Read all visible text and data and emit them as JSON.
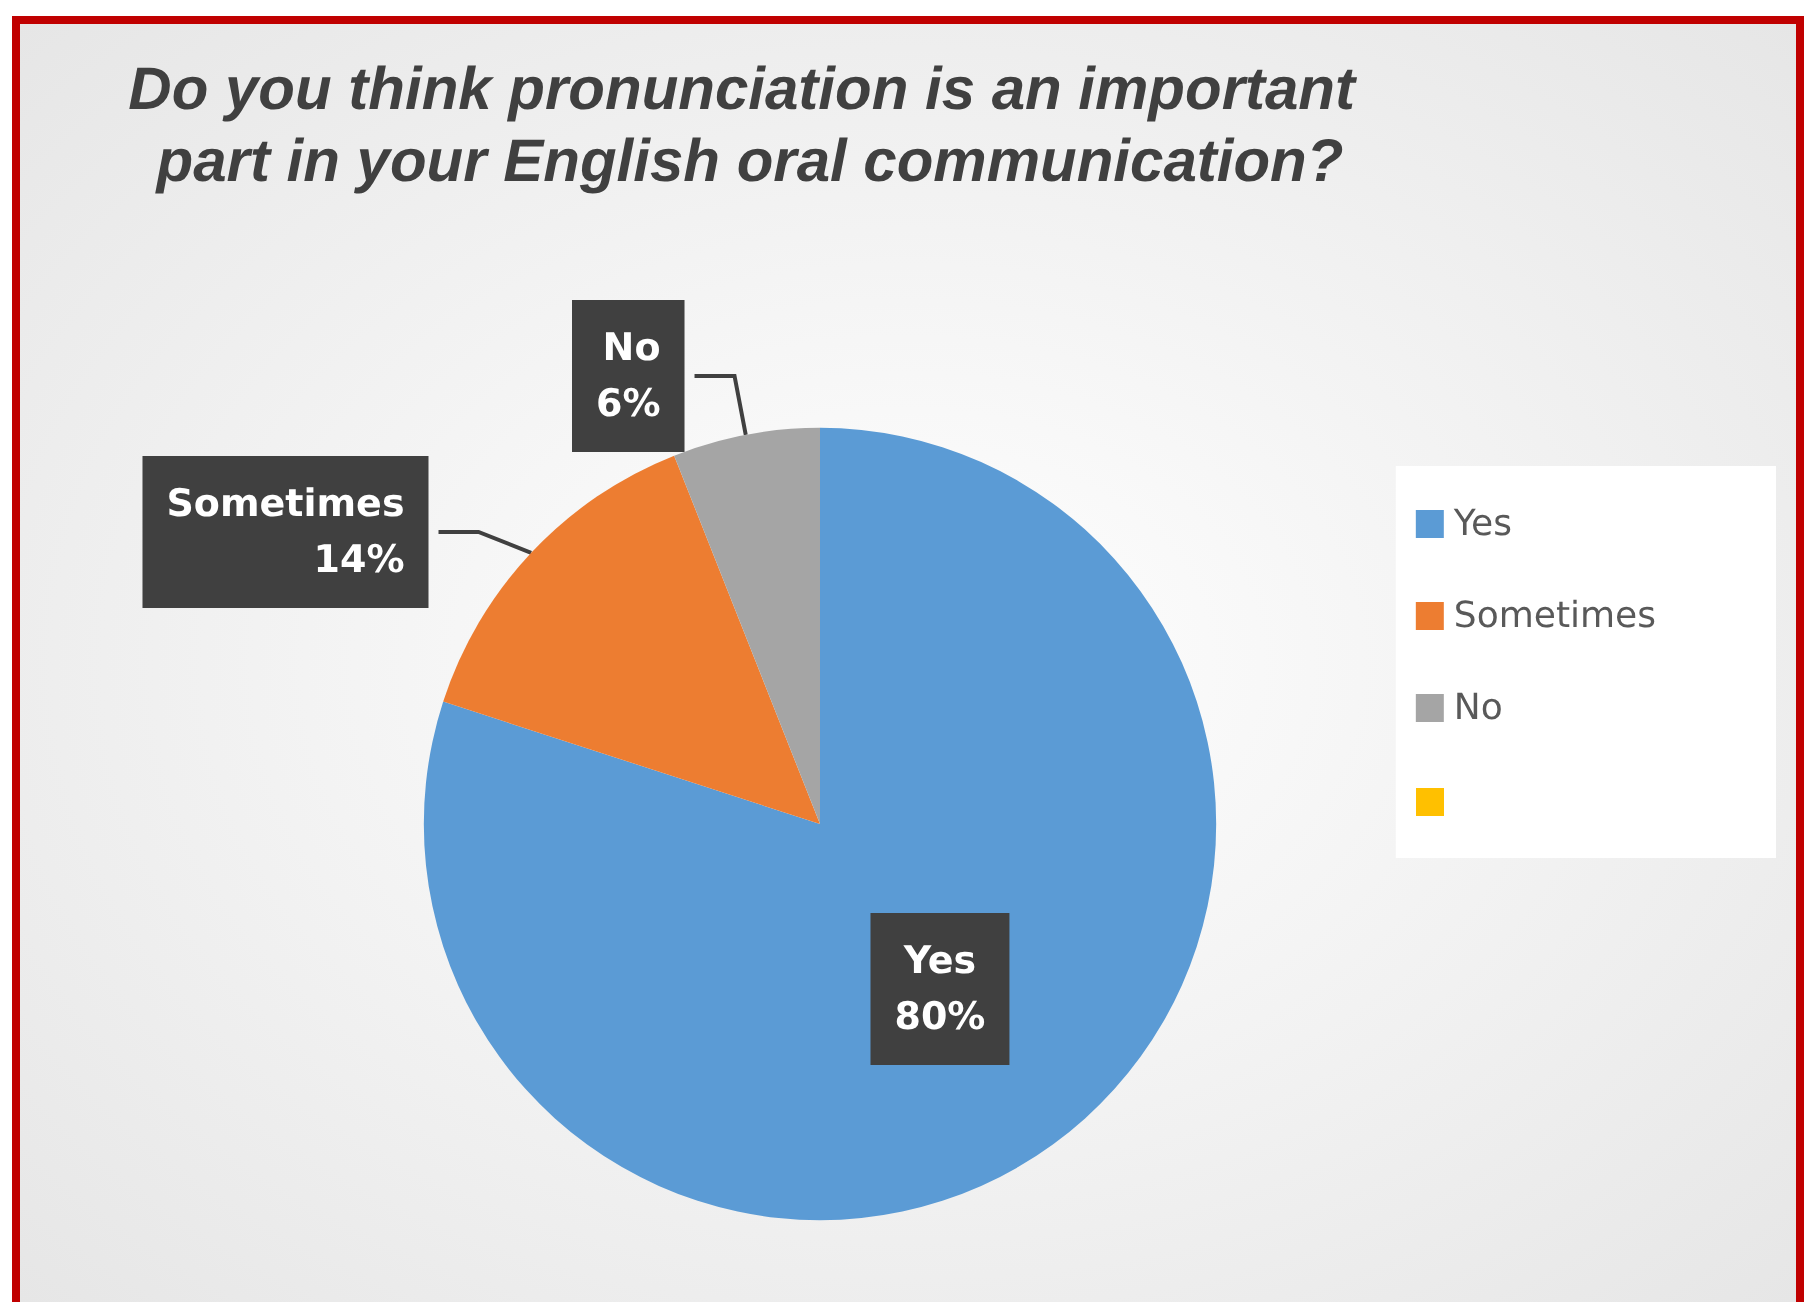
{
  "chart_data": {
    "type": "pie",
    "title": "Do you think pronunciation is an important part in your English oral communication?",
    "categories": [
      "Yes",
      "Sometimes",
      "No"
    ],
    "values": [
      80,
      14,
      6
    ],
    "colors": [
      "#5b9bd5",
      "#ed7d31",
      "#a5a5a5"
    ],
    "value_labels": [
      "80%",
      "14%",
      "6%"
    ],
    "legend": "right"
  }
}
